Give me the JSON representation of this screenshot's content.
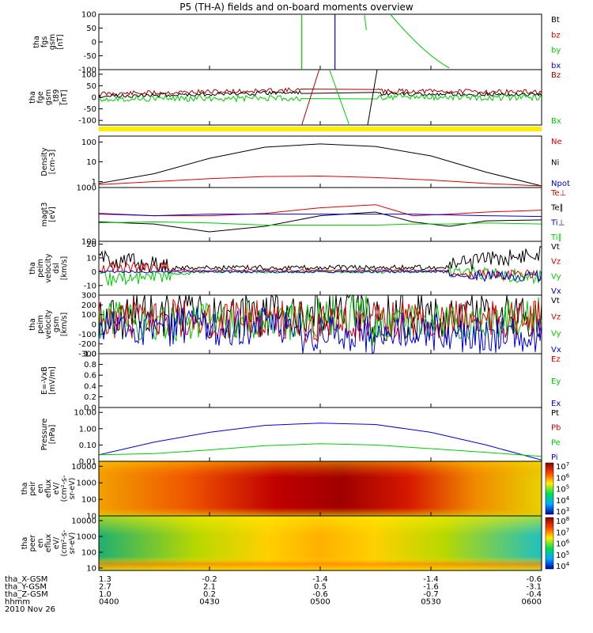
{
  "title": "P5 (TH-A) fields and on-board moments overview",
  "date": "2010 Nov 26",
  "colors": {
    "black": "#000000",
    "red": "#dd0000",
    "green": "#00cc00",
    "blue": "#0000dd",
    "darkred": "#aa0000",
    "yellow": "#ffee00"
  },
  "chart_data": [
    {
      "type": "line",
      "panel": "fgs_gsm",
      "ylabel": [
        "tha",
        "fgs",
        "gsm",
        "[nT]"
      ],
      "ylim": [
        -100,
        100
      ],
      "yticks": [
        "100",
        "50",
        "0",
        "-50",
        "-100"
      ],
      "legend": [
        {
          "label": "Bt",
          "color": "black"
        },
        {
          "label": "bz",
          "color": "red"
        },
        {
          "label": "by",
          "color": "green"
        },
        {
          "label": "bx",
          "color": "blue"
        }
      ]
    },
    {
      "type": "line",
      "panel": "fge_gsm",
      "ylabel": [
        "tha",
        "fge",
        "gsm",
        "_t89",
        "[nT]"
      ],
      "ylim": [
        -120,
        120
      ],
      "yticks": [
        "100",
        "50",
        "0",
        "-50",
        "-100"
      ],
      "legend": [
        {
          "label": "Bz",
          "color": "darkred"
        },
        {
          "label": "Bx",
          "color": "green"
        }
      ]
    },
    {
      "type": "line",
      "panel": "density",
      "ylabel": [
        "Density",
        "[cm-3]"
      ],
      "yscale": "log",
      "ylim": [
        0.5,
        200
      ],
      "yticks": [
        "100",
        "10",
        "1"
      ],
      "legend": [
        {
          "label": "Ne",
          "color": "red"
        },
        {
          "label": "Ni",
          "color": "black"
        },
        {
          "label": "Npot",
          "color": "blue"
        }
      ],
      "series": [
        {
          "name": "Ni",
          "color": "black",
          "x": [
            0,
            15,
            30,
            45,
            60,
            75,
            90,
            105,
            120
          ],
          "values": [
            0.8,
            2.5,
            15,
            55,
            80,
            60,
            20,
            3,
            0.6
          ]
        },
        {
          "name": "Ne",
          "color": "red",
          "x": [
            0,
            15,
            30,
            45,
            60,
            75,
            90,
            105,
            120
          ],
          "values": [
            0.7,
            1,
            1.4,
            1.8,
            1.9,
            1.6,
            1.2,
            0.8,
            0.6
          ]
        }
      ]
    },
    {
      "type": "line",
      "panel": "temperature",
      "ylabel": [
        "magt3",
        "[eV]"
      ],
      "yscale": "log",
      "ylim": [
        100,
        1000
      ],
      "yticks": [
        "1000",
        "100"
      ],
      "legend": [
        {
          "label": "Te⊥",
          "color": "red"
        },
        {
          "label": "Te∥",
          "color": "black"
        },
        {
          "label": "Ti⊥",
          "color": "blue"
        },
        {
          "label": "Ti∥",
          "color": "green"
        }
      ],
      "series": [
        {
          "name": "Te⊥",
          "color": "red",
          "x": [
            0,
            15,
            30,
            45,
            60,
            75,
            85,
            95,
            105,
            120
          ],
          "values": [
            320,
            300,
            300,
            330,
            420,
            480,
            300,
            320,
            350,
            380
          ]
        },
        {
          "name": "Te∥",
          "color": "black",
          "x": [
            0,
            15,
            30,
            45,
            60,
            75,
            85,
            95,
            105,
            120
          ],
          "values": [
            230,
            210,
            150,
            190,
            300,
            350,
            230,
            190,
            240,
            250
          ]
        },
        {
          "name": "Ti⊥",
          "color": "blue",
          "x": [
            0,
            15,
            30,
            45,
            60,
            75,
            85,
            95,
            105,
            120
          ],
          "values": [
            330,
            300,
            320,
            320,
            320,
            320,
            320,
            310,
            300,
            290
          ]
        },
        {
          "name": "Ti∥",
          "color": "green",
          "x": [
            0,
            15,
            30,
            45,
            60,
            75,
            85,
            95,
            105,
            120
          ],
          "values": [
            220,
            230,
            220,
            200,
            200,
            200,
            210,
            210,
            220,
            210
          ]
        }
      ]
    },
    {
      "type": "line",
      "panel": "velocity_dsl",
      "ylabel": [
        "tha",
        "peim",
        "velocity",
        "dsl",
        "[km/s]"
      ],
      "ylim": [
        -17,
        22
      ],
      "yticks": [
        "20",
        "10",
        "0",
        "-10"
      ],
      "legend": [
        {
          "label": "Vt",
          "color": "black"
        },
        {
          "label": "Vz",
          "color": "red"
        },
        {
          "label": "Vy",
          "color": "green"
        },
        {
          "label": "Vx",
          "color": "blue"
        }
      ]
    },
    {
      "type": "line",
      "panel": "velocity_gsm",
      "ylabel": [
        "tha",
        "peim",
        "velocity",
        "gsm",
        "[km/s]"
      ],
      "ylim": [
        -300,
        300
      ],
      "yticks": [
        "300",
        "200",
        "100",
        "0",
        "-100",
        "-200",
        "-300"
      ],
      "legend": [
        {
          "label": "Vt",
          "color": "black"
        },
        {
          "label": "Vz",
          "color": "red"
        },
        {
          "label": "Vy",
          "color": "green"
        },
        {
          "label": "Vx",
          "color": "blue"
        }
      ]
    },
    {
      "type": "line",
      "panel": "efield",
      "ylabel": [
        "E=-VxB",
        "[mV/m]"
      ],
      "ylim": [
        0,
        1
      ],
      "yticks": [
        "1.0",
        "0.8",
        "0.6",
        "0.4",
        "0.2",
        "0.0"
      ],
      "legend": [
        {
          "label": "Ez",
          "color": "red"
        },
        {
          "label": "Ey",
          "color": "green"
        },
        {
          "label": "Ex",
          "color": "blue"
        }
      ]
    },
    {
      "type": "line",
      "panel": "pressure",
      "ylabel": [
        "Pressure",
        "[nPa]"
      ],
      "yscale": "log",
      "ylim": [
        0.01,
        20
      ],
      "yticks": [
        "10.00",
        "1.00",
        "0.10",
        "0.01"
      ],
      "legend": [
        {
          "label": "Pt",
          "color": "black"
        },
        {
          "label": "Pb",
          "color": "red"
        },
        {
          "label": "Pe",
          "color": "green"
        },
        {
          "label": "Pi",
          "color": "blue"
        }
      ],
      "series": [
        {
          "name": "Pi",
          "color": "blue",
          "x": [
            0,
            15,
            30,
            45,
            60,
            75,
            90,
            105,
            120
          ],
          "values": [
            0.025,
            0.15,
            0.6,
            1.6,
            2.2,
            1.8,
            0.6,
            0.1,
            0.012
          ]
        },
        {
          "name": "Pe",
          "color": "green",
          "x": [
            0,
            15,
            30,
            45,
            60,
            75,
            90,
            105,
            120
          ],
          "values": [
            0.025,
            0.03,
            0.05,
            0.09,
            0.12,
            0.1,
            0.06,
            0.035,
            0.02
          ]
        }
      ]
    },
    {
      "type": "heatmap",
      "panel": "ion_spectrogram",
      "ylabel": [
        "tha",
        "peir",
        "en",
        "eflux",
        "eV/",
        "(cm^2-s-",
        "sr-eV)"
      ],
      "yscale": "log",
      "ylim": [
        10,
        20000
      ],
      "yticks": [
        "10000",
        "1000",
        "100",
        "10"
      ],
      "colorbar": [
        "10^7",
        "10^6",
        "10^5",
        "10^4",
        "10^3"
      ]
    },
    {
      "type": "heatmap",
      "panel": "electron_spectrogram",
      "ylabel": [
        "tha",
        "peer",
        "en",
        "eflux",
        "eV/",
        "(cm^2-s-",
        "sr-eV)"
      ],
      "yscale": "log",
      "ylim": [
        7,
        20000
      ],
      "yticks": [
        "10000",
        "1000",
        "100",
        "10"
      ],
      "colorbar": [
        "10^8",
        "10^7",
        "10^6",
        "10^5",
        "10^4"
      ]
    }
  ],
  "xaxis": {
    "labels": [
      "tha_X-GSM",
      "tha_Y-GSM",
      "tha_Z-GSM",
      "hhmm"
    ],
    "ticks": [
      {
        "time": "0400",
        "x_gsm": "1.3",
        "y_gsm": "2.7",
        "z_gsm": "1.0"
      },
      {
        "time": "0430",
        "x_gsm": "-0.2",
        "y_gsm": "2.1",
        "z_gsm": "0.2"
      },
      {
        "time": "0500",
        "x_gsm": "-1.4",
        "y_gsm": "0.5",
        "z_gsm": "-0.6"
      },
      {
        "time": "0530",
        "x_gsm": "-1.4",
        "y_gsm": "-1.6",
        "z_gsm": "-0.7"
      },
      {
        "time": "0600",
        "x_gsm": "-0.6",
        "y_gsm": "-3.1",
        "z_gsm": "-0.4"
      }
    ]
  }
}
